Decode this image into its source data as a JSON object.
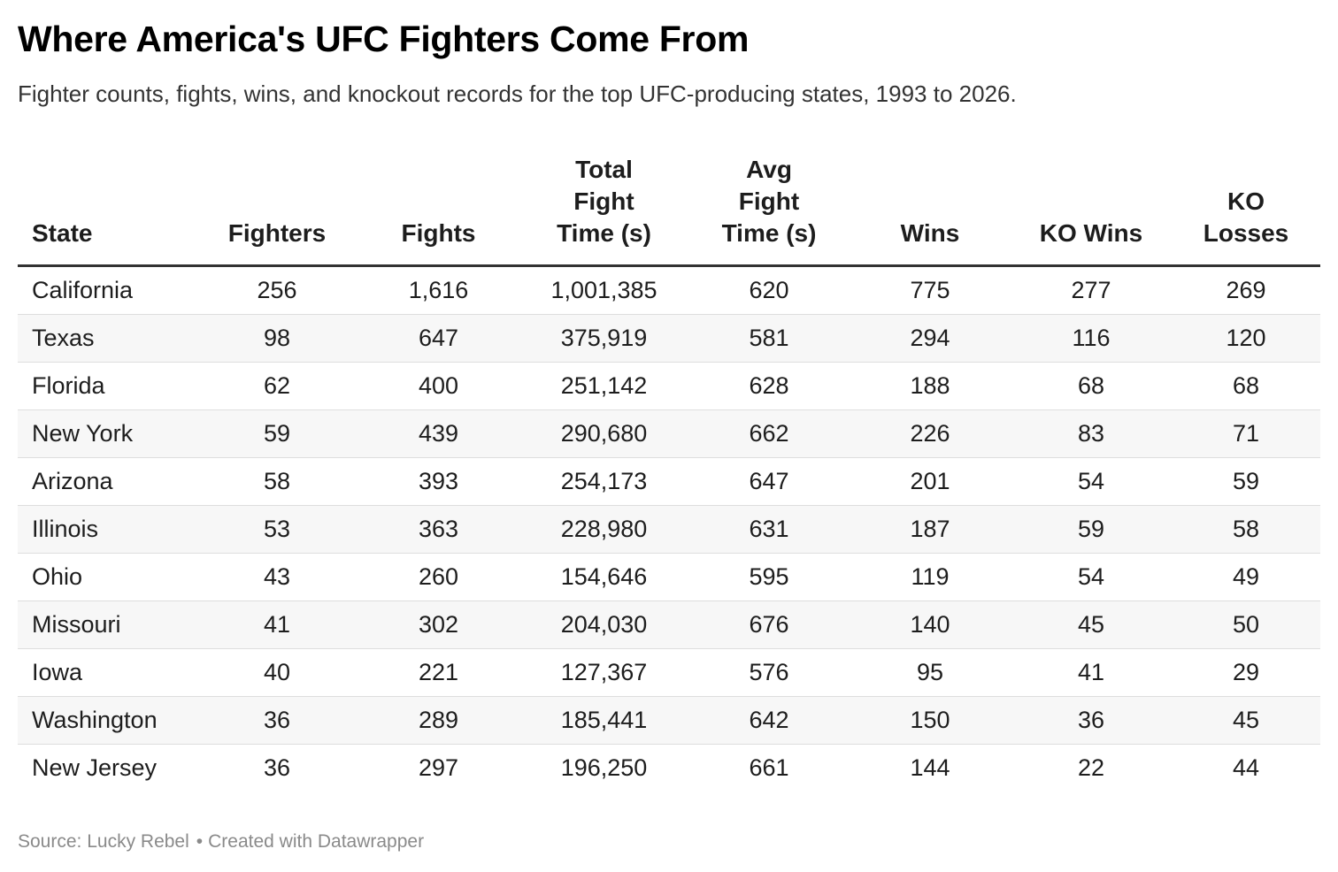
{
  "header": {
    "title": "Where America's UFC Fighters Come From",
    "subtitle": "Fighter counts, fights, wins, and knockout records for the top UFC-producing states, 1993 to 2026."
  },
  "footer": {
    "source": "Source: Lucky Rebel",
    "separator": "•",
    "credit": "Created with Datawrapper"
  },
  "chart_data": {
    "type": "table",
    "columns": [
      {
        "key": "state",
        "lines": [
          "State"
        ]
      },
      {
        "key": "fighters",
        "lines": [
          "Fighters"
        ]
      },
      {
        "key": "fights",
        "lines": [
          "Fights"
        ]
      },
      {
        "key": "total_fight_time",
        "lines": [
          "Total",
          "Fight",
          "Time (s)"
        ]
      },
      {
        "key": "avg_fight_time",
        "lines": [
          "Avg",
          "Fight",
          "Time (s)"
        ]
      },
      {
        "key": "wins",
        "lines": [
          "Wins"
        ]
      },
      {
        "key": "ko_wins",
        "lines": [
          "KO Wins"
        ]
      },
      {
        "key": "ko_losses",
        "lines": [
          "KO",
          "Losses"
        ]
      }
    ],
    "rows": [
      [
        "California",
        "256",
        "1,616",
        "1,001,385",
        "620",
        "775",
        "277",
        "269"
      ],
      [
        "Texas",
        "98",
        "647",
        "375,919",
        "581",
        "294",
        "116",
        "120"
      ],
      [
        "Florida",
        "62",
        "400",
        "251,142",
        "628",
        "188",
        "68",
        "68"
      ],
      [
        "New York",
        "59",
        "439",
        "290,680",
        "662",
        "226",
        "83",
        "71"
      ],
      [
        "Arizona",
        "58",
        "393",
        "254,173",
        "647",
        "201",
        "54",
        "59"
      ],
      [
        "Illinois",
        "53",
        "363",
        "228,980",
        "631",
        "187",
        "59",
        "58"
      ],
      [
        "Ohio",
        "43",
        "260",
        "154,646",
        "595",
        "119",
        "54",
        "49"
      ],
      [
        "Missouri",
        "41",
        "302",
        "204,030",
        "676",
        "140",
        "45",
        "50"
      ],
      [
        "Iowa",
        "40",
        "221",
        "127,367",
        "576",
        "95",
        "41",
        "29"
      ],
      [
        "Washington",
        "36",
        "289",
        "185,441",
        "642",
        "150",
        "36",
        "45"
      ],
      [
        "New Jersey",
        "36",
        "297",
        "196,250",
        "661",
        "144",
        "22",
        "44"
      ]
    ]
  }
}
